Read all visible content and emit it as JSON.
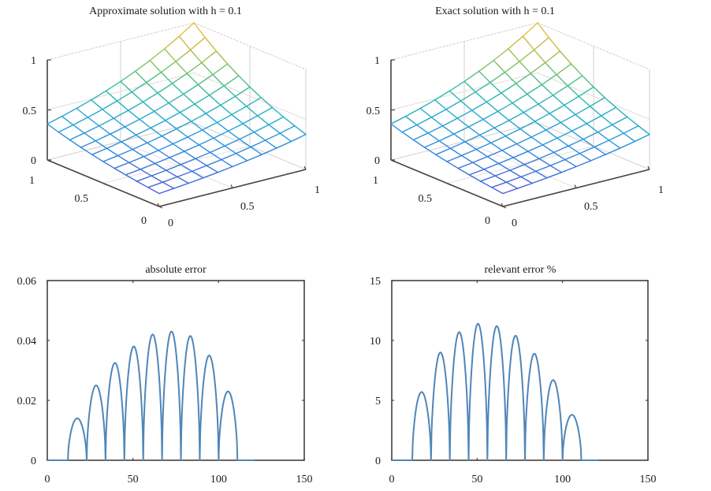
{
  "chart_data": [
    {
      "type": "surface",
      "title": "Approximate solution with h = 0.1",
      "xlim": [
        0,
        1
      ],
      "ylim": [
        0,
        1
      ],
      "zlim": [
        0,
        1
      ],
      "x_ticks": [
        "0",
        "0.5",
        "1"
      ],
      "y_ticks": [
        "0",
        "0.5",
        "1"
      ],
      "z_ticks": [
        "0",
        "0.5",
        "1"
      ],
      "grid_n": 10,
      "corner_values": {
        "x0y0": 0.13,
        "x1y0": 0.35,
        "x0y1": 0.36,
        "x1y1": 1.0
      },
      "colormap": [
        "#3e26a8",
        "#4a5ed6",
        "#2f8ee0",
        "#22aecb",
        "#3bbd9a",
        "#8dc35a",
        "#d7b93c",
        "#f6c83a"
      ]
    },
    {
      "type": "surface",
      "title": "Exact solution with h = 0.1",
      "xlim": [
        0,
        1
      ],
      "ylim": [
        0,
        1
      ],
      "zlim": [
        0,
        1
      ],
      "x_ticks": [
        "0",
        "0.5",
        "1"
      ],
      "y_ticks": [
        "0",
        "0.5",
        "1"
      ],
      "z_ticks": [
        "0",
        "0.5",
        "1"
      ],
      "grid_n": 10,
      "corner_values": {
        "x0y0": 0.13,
        "x1y0": 0.35,
        "x0y1": 0.36,
        "x1y1": 1.0
      },
      "colormap": [
        "#3e26a8",
        "#4a5ed6",
        "#2f8ee0",
        "#22aecb",
        "#3bbd9a",
        "#8dc35a",
        "#d7b93c",
        "#f6c83a"
      ]
    },
    {
      "type": "line",
      "title": "absolute error",
      "xlim": [
        0,
        150
      ],
      "ylim": [
        0,
        0.06
      ],
      "x_ticks": [
        "0",
        "50",
        "100",
        "150"
      ],
      "y_ticks": [
        "0",
        "0.02",
        "0.04",
        "0.06"
      ],
      "x_tick_values": [
        0,
        50,
        100,
        150
      ],
      "y_tick_values": [
        0,
        0.02,
        0.04,
        0.06
      ],
      "line_color": "#4f86b8",
      "zeros": [
        12,
        23,
        34,
        45,
        56,
        67,
        78,
        89,
        100,
        111
      ],
      "peaks": [
        0.014,
        0.025,
        0.0325,
        0.038,
        0.042,
        0.043,
        0.0415,
        0.035,
        0.023
      ],
      "x_end": 121
    },
    {
      "type": "line",
      "title": "relevant error %",
      "xlim": [
        0,
        150
      ],
      "ylim": [
        0,
        15
      ],
      "x_ticks": [
        "0",
        "50",
        "100",
        "150"
      ],
      "y_ticks": [
        "0",
        "5",
        "10",
        "15"
      ],
      "x_tick_values": [
        0,
        50,
        100,
        150
      ],
      "y_tick_values": [
        0,
        5,
        10,
        15
      ],
      "line_color": "#4f86b8",
      "zeros": [
        12,
        23,
        34,
        45,
        56,
        67,
        78,
        89,
        100,
        111
      ],
      "peaks": [
        5.7,
        9.0,
        10.7,
        11.4,
        11.2,
        10.4,
        8.9,
        6.7,
        3.8
      ],
      "x_end": 121
    }
  ]
}
